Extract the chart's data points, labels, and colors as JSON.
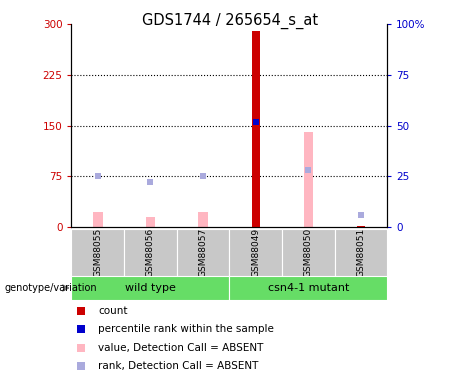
{
  "title": "GDS1744 / 265654_s_at",
  "samples": [
    "GSM88055",
    "GSM88056",
    "GSM88057",
    "GSM88049",
    "GSM88050",
    "GSM88051"
  ],
  "count_values": [
    0,
    0,
    0,
    290,
    0,
    2
  ],
  "rank_values": [
    0,
    0,
    0,
    52,
    0,
    0
  ],
  "absent_value_values": [
    22,
    15,
    22,
    0,
    140,
    0
  ],
  "absent_rank_values": [
    25,
    22,
    25,
    0,
    28,
    6
  ],
  "ylim_left": [
    0,
    300
  ],
  "ylim_right": [
    0,
    100
  ],
  "yticks_left": [
    0,
    75,
    150,
    225,
    300
  ],
  "yticks_right": [
    0,
    25,
    50,
    75,
    100
  ],
  "color_count": "#CC0000",
  "color_rank": "#0000CC",
  "color_absent_value": "#FFB6C1",
  "color_absent_rank": "#AAAADD",
  "bg_sample": "#C8C8C8",
  "bg_green": "#66DD66",
  "legend_items": [
    "count",
    "percentile rank within the sample",
    "value, Detection Call = ABSENT",
    "rank, Detection Call = ABSENT"
  ],
  "legend_colors": [
    "#CC0000",
    "#0000CC",
    "#FFB6C1",
    "#AAAADD"
  ],
  "left_label_color": "#CC0000",
  "right_label_color": "#0000CC",
  "genotype_label": "genotype/variation",
  "group_wt_label": "wild type",
  "group_mt_label": "csn4-1 mutant"
}
